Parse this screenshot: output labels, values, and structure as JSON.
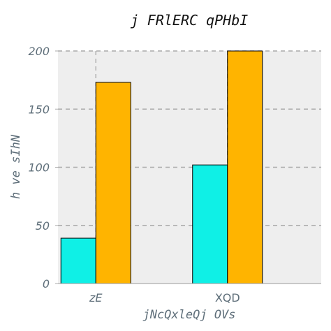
{
  "chart_data": {
    "type": "bar",
    "title": "j FRlERC qPHbI",
    "xlabel": "jNcQxleQj OVs",
    "ylabel": "h ve sIhN",
    "categories": [
      "zE",
      "XQD"
    ],
    "series": [
      {
        "values": [
          39,
          102
        ],
        "color": "#0ff0e6"
      },
      {
        "values": [
          173,
          200
        ],
        "color": "#ffb400"
      }
    ],
    "ylim": [
      0,
      200
    ],
    "yticks": [
      0,
      50,
      100,
      150,
      200
    ],
    "grid": true,
    "colors": {
      "plot_background": "#eeeeee",
      "grid": "#aaaaaa",
      "axis_text": "#5f6f7a",
      "bar_edge": "#000000"
    }
  }
}
